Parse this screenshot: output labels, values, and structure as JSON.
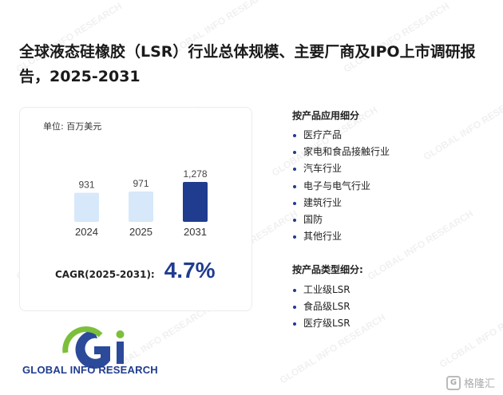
{
  "title": "全球液态硅橡胶（LSR）行业总体规模、主要厂商及IPO上市调研报告，2025-2031",
  "unit_label": "单位: 百万美元",
  "chart_data": {
    "type": "bar",
    "categories": [
      "2024",
      "2025",
      "2031"
    ],
    "values": [
      931,
      971,
      1278
    ],
    "value_labels": [
      "931",
      "971",
      "1,278"
    ],
    "colors": [
      "#d6e8fa",
      "#d6e8fa",
      "#1f3c8f"
    ],
    "ylim": [
      0,
      1300
    ],
    "grid": false
  },
  "cagr": {
    "label": "CAGR(2025-2031):",
    "value": "4.7%"
  },
  "application_section": {
    "title": "按产品应用细分",
    "items": [
      "医疗产品",
      "家电和食品接触行业",
      "汽车行业",
      "电子与电气行业",
      "建筑行业",
      "国防",
      "其他行业"
    ]
  },
  "type_section": {
    "title": "按产品类型细分:",
    "items": [
      "工业级LSR",
      "食品级LSR",
      "医疗级LSR"
    ]
  },
  "logo": {
    "text": "GLOBAL INFO RESEARCH",
    "mark": "Gi"
  },
  "watermark_text": "GLOBAL INFO RESEARCH",
  "brand": {
    "text": "格隆汇",
    "icon": "G"
  }
}
